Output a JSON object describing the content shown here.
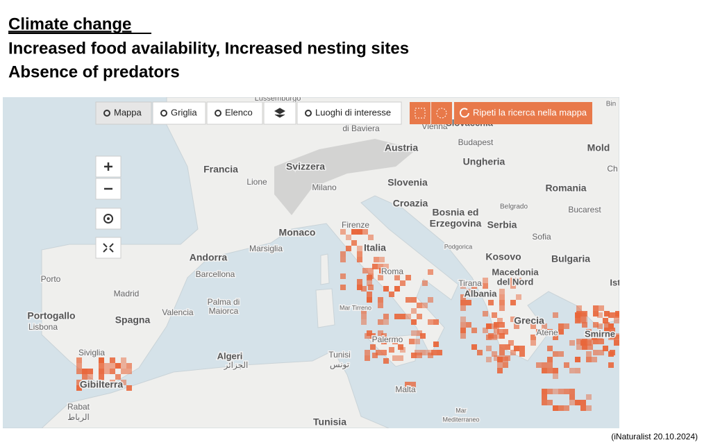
{
  "slide": {
    "heading": "Climate change",
    "lines": [
      "Increased food availability, Increased nesting sites",
      "Absence of predators"
    ],
    "source": "(iNaturalist 20.10.2024)"
  },
  "toolbar": {
    "buttons": [
      "Mappa",
      "Griglia",
      "Elenco",
      "Luoghi di interesse"
    ],
    "search": "Ripeti la ricerca nella mappa"
  },
  "map": {
    "labels": [
      "Lussemburgo",
      "di Baviera",
      "Vienna",
      "Slovacchia",
      "Austria",
      "Budapest",
      "Mold",
      "Ungheria",
      "Francia",
      "Svizzera",
      "Lione",
      "Milano",
      "Slovenia",
      "Romania",
      "Croazia",
      "Belgrado",
      "Bucarest",
      "Bosnia ed",
      "Erzegovina",
      "Serbia",
      "Monaco",
      "Firenze",
      "Sofia",
      "Marsiglia",
      "Italia",
      "Podgorica",
      "Kosovo",
      "Bulgaria",
      "Andorra",
      "Roma",
      "Barcellona",
      "Porto",
      "Tirana",
      "Macedonia",
      "del Nord",
      "Albania",
      "Madrid",
      "Palma di",
      "Maiorca",
      "Mar Tirreno",
      "Portogallo",
      "Lisbona",
      "Spagna",
      "Valencia",
      "Grecia",
      "Atene",
      "Smirne",
      "Palermo",
      "Algeri",
      "الجزائر",
      "Tunisi",
      "تونس",
      "Siviglia",
      "Gibilterra",
      "Malta",
      "Rabat",
      "الرباط",
      "Tunisia",
      "Mar",
      "Mediterraneo",
      "Bin",
      "Ch",
      "Ist"
    ]
  }
}
